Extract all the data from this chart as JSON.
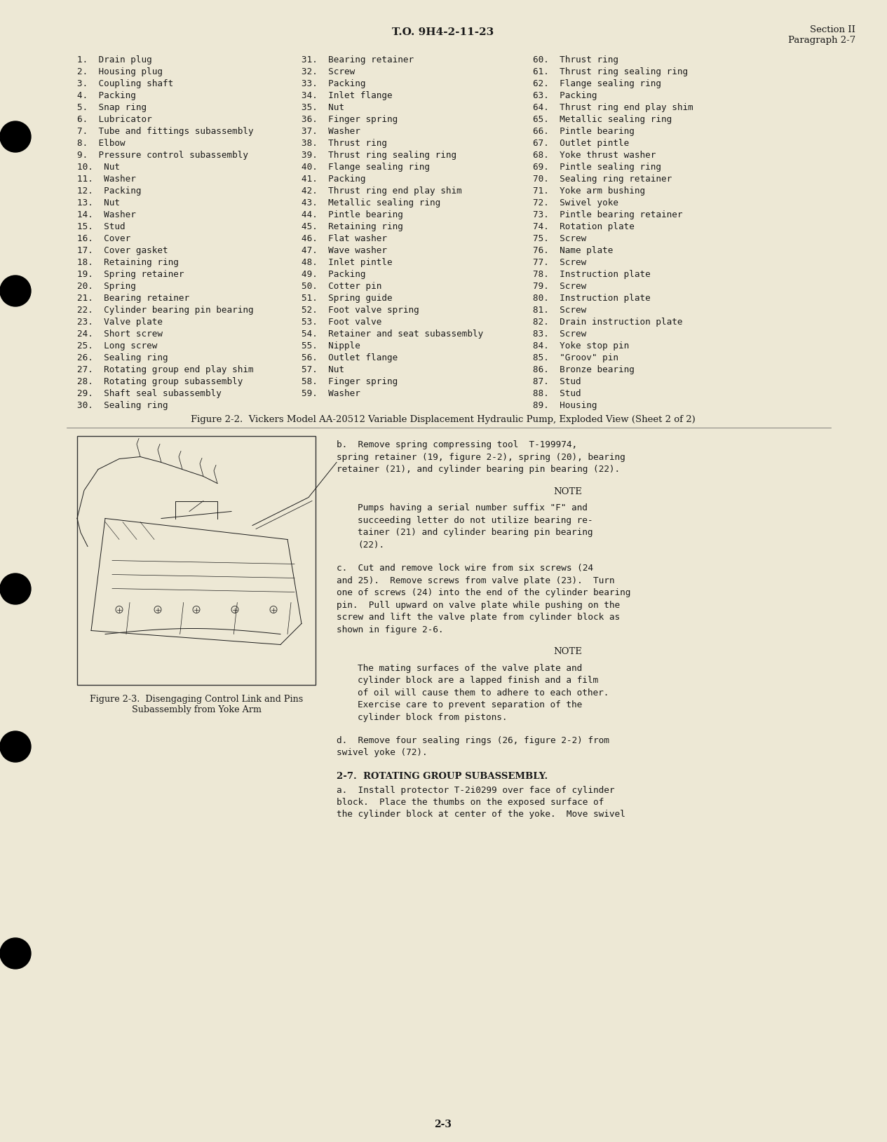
{
  "bg_color": "#ede8d5",
  "text_color": "#1a1a1a",
  "header_center": "T.O. 9H4-2-11-23",
  "header_right_line1": "Section II",
  "header_right_line2": "Paragraph 2-7",
  "col1_items": [
    "1.  Drain plug",
    "2.  Housing plug",
    "3.  Coupling shaft",
    "4.  Packing",
    "5.  Snap ring",
    "6.  Lubricator",
    "7.  Tube and fittings subassembly",
    "8.  Elbow",
    "9.  Pressure control subassembly",
    "10.  Nut",
    "11.  Washer",
    "12.  Packing",
    "13.  Nut",
    "14.  Washer",
    "15.  Stud",
    "16.  Cover",
    "17.  Cover gasket",
    "18.  Retaining ring",
    "19.  Spring retainer",
    "20.  Spring",
    "21.  Bearing retainer",
    "22.  Cylinder bearing pin bearing",
    "23.  Valve plate",
    "24.  Short screw",
    "25.  Long screw",
    "26.  Sealing ring",
    "27.  Rotating group end play shim",
    "28.  Rotating group subassembly",
    "29.  Shaft seal subassembly",
    "30.  Sealing ring"
  ],
  "col2_items": [
    "31.  Bearing retainer",
    "32.  Screw",
    "33.  Packing",
    "34.  Inlet flange",
    "35.  Nut",
    "36.  Finger spring",
    "37.  Washer",
    "38.  Thrust ring",
    "39.  Thrust ring sealing ring",
    "40.  Flange sealing ring",
    "41.  Packing",
    "42.  Thrust ring end play shim",
    "43.  Metallic sealing ring",
    "44.  Pintle bearing",
    "45.  Retaining ring",
    "46.  Flat washer",
    "47.  Wave washer",
    "48.  Inlet pintle",
    "49.  Packing",
    "50.  Cotter pin",
    "51.  Spring guide",
    "52.  Foot valve spring",
    "53.  Foot valve",
    "54.  Retainer and seat subassembly",
    "55.  Nipple",
    "56.  Outlet flange",
    "57.  Nut",
    "58.  Finger spring",
    "59.  Washer"
  ],
  "col3_items": [
    "60.  Thrust ring",
    "61.  Thrust ring sealing ring",
    "62.  Flange sealing ring",
    "63.  Packing",
    "64.  Thrust ring end play shim",
    "65.  Metallic sealing ring",
    "66.  Pintle bearing",
    "67.  Outlet pintle",
    "68.  Yoke thrust washer",
    "69.  Pintle sealing ring",
    "70.  Sealing ring retainer",
    "71.  Yoke arm bushing",
    "72.  Swivel yoke",
    "73.  Pintle bearing retainer",
    "74.  Rotation plate",
    "75.  Screw",
    "76.  Name plate",
    "77.  Screw",
    "78.  Instruction plate",
    "79.  Screw",
    "80.  Instruction plate",
    "81.  Screw",
    "82.  Drain instruction plate",
    "83.  Screw",
    "84.  Yoke stop pin",
    "85.  \"Groov\" pin",
    "86.  Bronze bearing",
    "87.  Stud",
    "88.  Stud",
    "89.  Housing"
  ],
  "fig_caption": "Figure 2-2.  Vickers Model AA-20512 Variable Displacement Hydraulic Pump, Exploded View (Sheet 2 of 2)",
  "fig3_caption_line1": "Figure 2-3.  Disengaging Control Link and Pins",
  "fig3_caption_line2": "Subassembly from Yoke Arm",
  "para_b_lines": [
    "b.  Remove spring compressing tool  T-199974,",
    "spring retainer (19, figure 2-2), spring (20), bearing",
    "retainer (21), and cylinder bearing pin bearing (22)."
  ],
  "note1_title": "NOTE",
  "note1_lines": [
    "Pumps having a serial number suffix \"F\" and",
    "succeeding letter do not utilize bearing re-",
    "tainer (21) and cylinder bearing pin bearing",
    "(22)."
  ],
  "para_c_lines": [
    "c.  Cut and remove lock wire from six screws (24",
    "and 25).  Remove screws from valve plate (23).  Turn",
    "one of screws (24) into the end of the cylinder bearing",
    "pin.  Pull upward on valve plate while pushing on the",
    "screw and lift the valve plate from cylinder block as",
    "shown in figure 2-6."
  ],
  "note2_title": "NOTE",
  "note2_lines": [
    "The mating surfaces of the valve plate and",
    "cylinder block are a lapped finish and a film",
    "of oil will cause them to adhere to each other.",
    "Exercise care to prevent separation of the",
    "cylinder block from pistons."
  ],
  "para_d_lines": [
    "d.  Remove four sealing rings (26, figure 2-2) from",
    "swivel yoke (72)."
  ],
  "section_header": "2-7.  ROTATING GROUP SUBASSEMBLY.",
  "para_a_lines": [
    "a.  Install protector T-2i0299 over face of cylinder",
    "block.  Place the thumbs on the exposed surface of",
    "the cylinder block at center of the yoke.  Move swivel"
  ],
  "page_number": "2-3"
}
